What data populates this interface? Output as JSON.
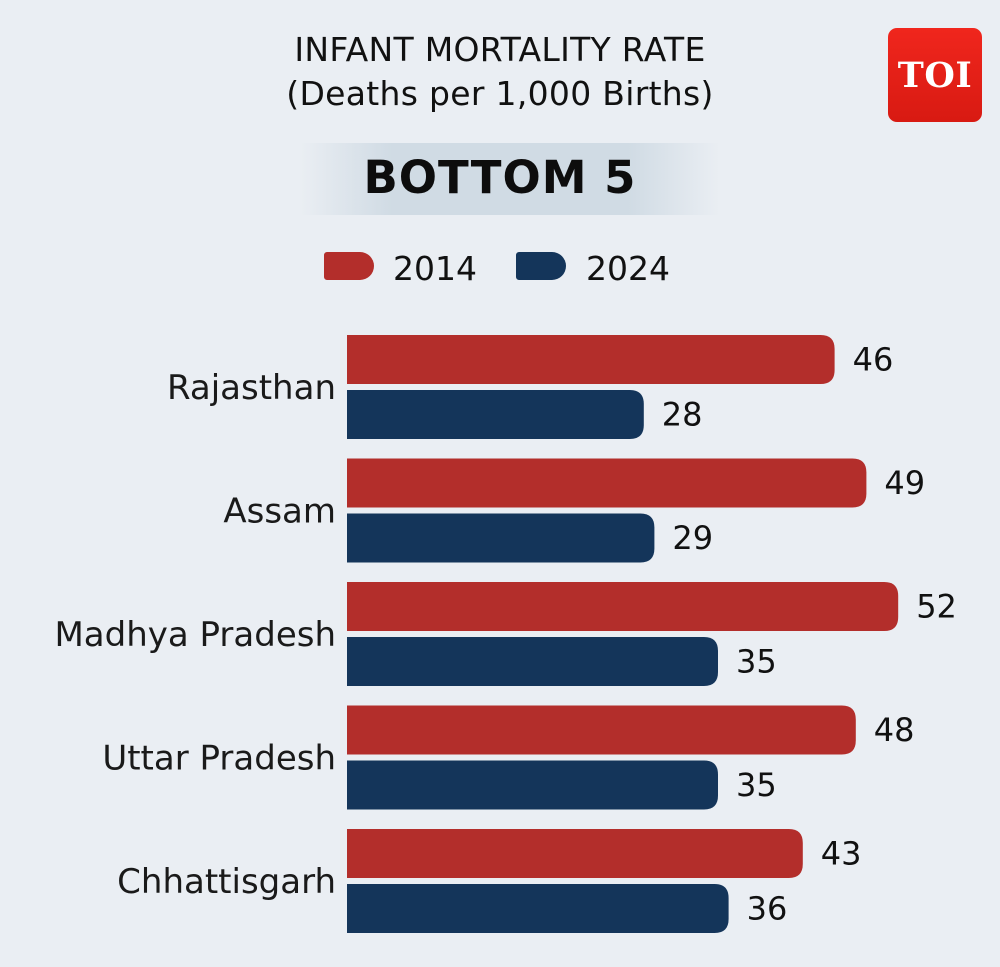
{
  "header": {
    "title_line1": "INFANT MORTALITY RATE",
    "title_line2": "(Deaths per 1,000 Births)",
    "subtitle": "BOTTOM 5",
    "logo_text": "TOI"
  },
  "colors": {
    "series_2014": "#b32e2b",
    "series_2024": "#14355a",
    "logo_red": "#e3201a",
    "background": "#eaeef3"
  },
  "chart_data": {
    "type": "bar",
    "orientation": "horizontal",
    "title": "INFANT MORTALITY RATE",
    "subtitle": "(Deaths per 1,000 Births)",
    "categories": [
      "Rajasthan",
      "Assam",
      "Madhya Pradesh",
      "Uttar Pradesh",
      "Chhattisgarh"
    ],
    "series": [
      {
        "name": "2014",
        "values": [
          46,
          49,
          52,
          48,
          43
        ]
      },
      {
        "name": "2024",
        "values": [
          28,
          29,
          35,
          35,
          36
        ]
      }
    ],
    "xlim": [
      0,
      60
    ],
    "grid": false,
    "legend": "top-center",
    "data_labels": true
  }
}
